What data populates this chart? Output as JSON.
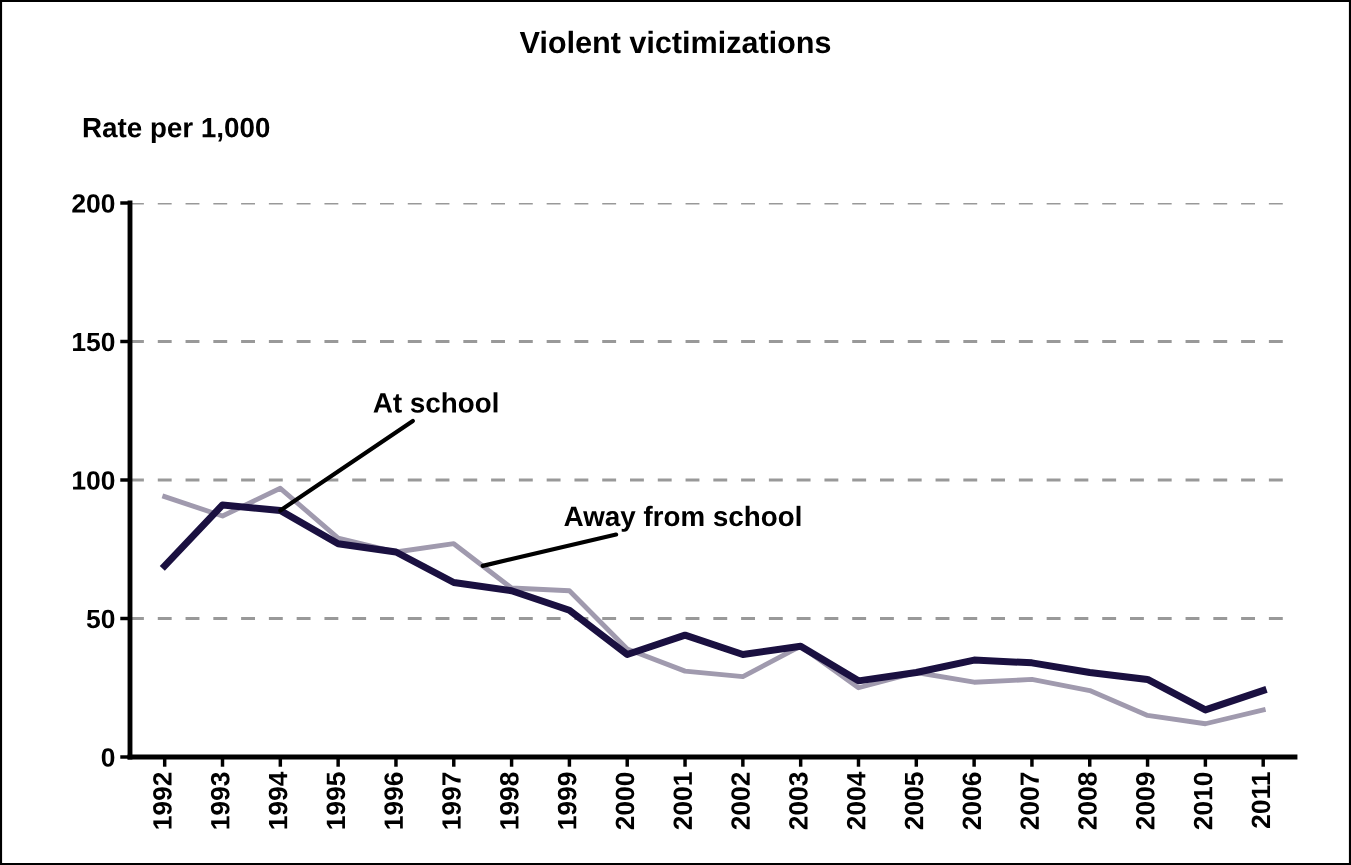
{
  "chart_data": {
    "type": "line",
    "title": "Violent victimizations",
    "ylabel": "Rate per 1,000",
    "x": [
      1992,
      1993,
      1994,
      1995,
      1996,
      1997,
      1998,
      1999,
      2000,
      2001,
      2002,
      2003,
      2004,
      2005,
      2006,
      2007,
      2008,
      2009,
      2010,
      2011
    ],
    "series": [
      {
        "name": "At school",
        "color": "#1a1040",
        "values": [
          69,
          91,
          89,
          77,
          74,
          63,
          60,
          53,
          37,
          44,
          37,
          40,
          27.5,
          30.5,
          35,
          34,
          30.5,
          28,
          17,
          24
        ]
      },
      {
        "name": "Away from school",
        "color": "#a09aae",
        "values": [
          94,
          87,
          97,
          79,
          74,
          77,
          61,
          60,
          39,
          31,
          29,
          40,
          25,
          30.5,
          27,
          28,
          24,
          15,
          12,
          17
        ]
      }
    ],
    "xlim": [
      1991.4,
      2011.55
    ],
    "xticks": [
      1992,
      1993,
      1994,
      1995,
      1996,
      1997,
      1998,
      1999,
      2000,
      2001,
      2002,
      2003,
      2004,
      2005,
      2006,
      2007,
      2008,
      2009,
      2010,
      2011
    ],
    "ylim": [
      0,
      200
    ],
    "yticks": [
      0,
      50,
      100,
      150,
      200
    ],
    "grid": "y",
    "legend": false,
    "marker": "none",
    "line_style": "solid"
  }
}
